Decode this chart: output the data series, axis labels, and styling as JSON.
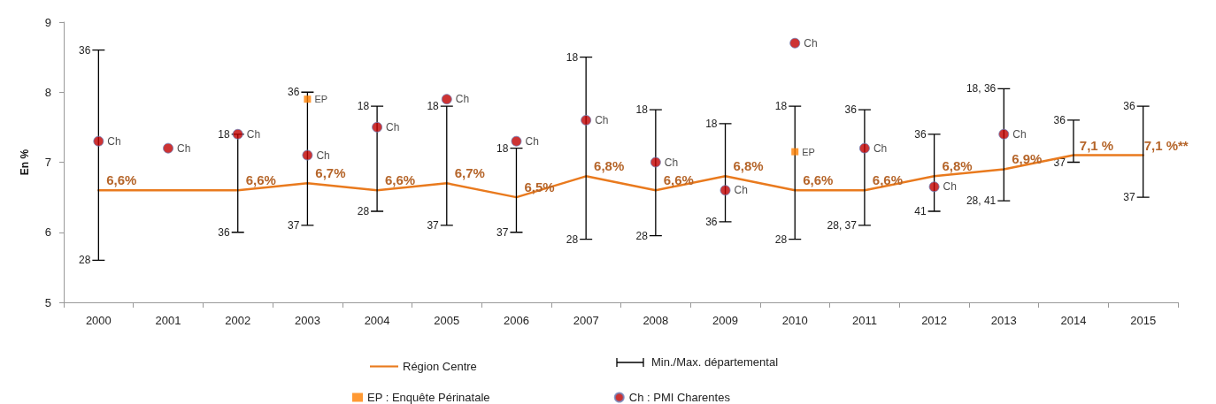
{
  "chart_data": {
    "type": "line",
    "ylabel": "En %",
    "categories": [
      "2000",
      "2001",
      "2002",
      "2003",
      "2004",
      "2005",
      "2006",
      "2007",
      "2008",
      "2009",
      "2010",
      "2011",
      "2012",
      "2013",
      "2014",
      "2015"
    ],
    "ylim": [
      5,
      9
    ],
    "yticks": [
      5,
      6,
      7,
      8,
      9
    ],
    "grid": false,
    "legend": "bottom",
    "series": [
      {
        "name": "Région Centre",
        "marker": "none",
        "color": "#e97a1e",
        "values": [
          6.6,
          6.6,
          6.6,
          6.7,
          6.6,
          6.7,
          6.5,
          6.8,
          6.6,
          6.8,
          6.6,
          6.6,
          6.8,
          6.9,
          7.1,
          7.1
        ],
        "value_labels": [
          "6,6%",
          null,
          "6,6%",
          "6,7%",
          "6,6%",
          "6,7%",
          "6,5%",
          "6,8%",
          "6,6%",
          "6,8%",
          "6,6%",
          "6,6%",
          "6,8%",
          "6,9%",
          "7,1 %",
          "7,1 %**"
        ],
        "errors": [
          [
            5.6,
            8.6
          ],
          null,
          [
            6.0,
            7.4
          ],
          [
            6.1,
            8.0
          ],
          [
            6.3,
            7.8
          ],
          [
            6.1,
            7.8
          ],
          [
            6.0,
            7.2
          ],
          [
            5.9,
            8.5
          ],
          [
            5.95,
            7.75
          ],
          [
            6.15,
            7.55
          ],
          [
            5.9,
            7.8
          ],
          [
            6.1,
            7.75
          ],
          [
            6.3,
            7.4
          ],
          [
            6.45,
            8.05
          ],
          [
            7.0,
            7.6
          ],
          [
            6.5,
            7.8
          ]
        ]
      },
      {
        "name": "EP : Enquête Périnatale",
        "type": "scatter",
        "marker": "square",
        "color": "#ff8000",
        "values": [
          null,
          null,
          null,
          7.9,
          null,
          null,
          null,
          null,
          null,
          null,
          7.15,
          null,
          null,
          null,
          null,
          null
        ],
        "value_labels": [
          null,
          null,
          null,
          "EP",
          null,
          null,
          null,
          null,
          null,
          null,
          "EP",
          null,
          null,
          null,
          null,
          null
        ]
      },
      {
        "name": "Ch : PMI Charentes",
        "type": "scatter",
        "marker": "circle",
        "color": "#c00000",
        "values": [
          7.3,
          7.2,
          7.4,
          7.1,
          7.5,
          7.9,
          7.3,
          7.6,
          7.0,
          6.6,
          8.7,
          7.2,
          6.65,
          7.4,
          null,
          null
        ],
        "value_labels": [
          "Ch",
          "Ch",
          "Ch",
          "Ch",
          "Ch",
          "Ch",
          "Ch",
          "Ch",
          "Ch",
          "Ch",
          "Ch",
          "Ch",
          "Ch",
          "Ch",
          null,
          null
        ]
      }
    ],
    "annotations": [
      "Min./Max. départemental",
      {
        "text": "36",
        "x": "2000",
        "y": 8.6
      },
      {
        "text": "28",
        "x": "2000",
        "y": 5.6
      },
      {
        "text": "18",
        "x": "2002",
        "y": 7.4
      },
      {
        "text": "36",
        "x": "2002",
        "y": 6.0
      },
      {
        "text": "36",
        "x": "2003",
        "y": 8.0
      },
      {
        "text": "37",
        "x": "2003",
        "y": 6.1
      },
      {
        "text": "18",
        "x": "2004",
        "y": 7.8
      },
      {
        "text": "28",
        "x": "2004",
        "y": 6.3
      },
      {
        "text": "18",
        "x": "2005",
        "y": 7.8
      },
      {
        "text": "37",
        "x": "2005",
        "y": 6.1
      },
      {
        "text": "18",
        "x": "2006",
        "y": 7.2
      },
      {
        "text": "37",
        "x": "2006",
        "y": 6.0
      },
      {
        "text": "18",
        "x": "2007",
        "y": 8.5
      },
      {
        "text": "28",
        "x": "2007",
        "y": 5.9
      },
      {
        "text": "18",
        "x": "2008",
        "y": 7.75
      },
      {
        "text": "28",
        "x": "2008",
        "y": 5.95
      },
      {
        "text": "18",
        "x": "2009",
        "y": 7.55
      },
      {
        "text": "36",
        "x": "2009",
        "y": 6.15
      },
      {
        "text": "18",
        "x": "2010",
        "y": 7.8
      },
      {
        "text": "28",
        "x": "2010",
        "y": 5.9
      },
      {
        "text": "36",
        "x": "2011",
        "y": 7.75
      },
      {
        "text": "28, 37",
        "x": "2011",
        "y": 6.1
      },
      {
        "text": "36",
        "x": "2012",
        "y": 7.4
      },
      {
        "text": "41",
        "x": "2012",
        "y": 6.3
      },
      {
        "text": "18, 36",
        "x": "2013",
        "y": 8.05
      },
      {
        "text": "28, 41",
        "x": "2013",
        "y": 6.45
      },
      {
        "text": "36",
        "x": "2014",
        "y": 7.6
      },
      {
        "text": "37",
        "x": "2014",
        "y": 7.0
      },
      {
        "text": "36",
        "x": "2015",
        "y": 7.8
      },
      {
        "text": "37",
        "x": "2015",
        "y": 6.5
      }
    ]
  }
}
